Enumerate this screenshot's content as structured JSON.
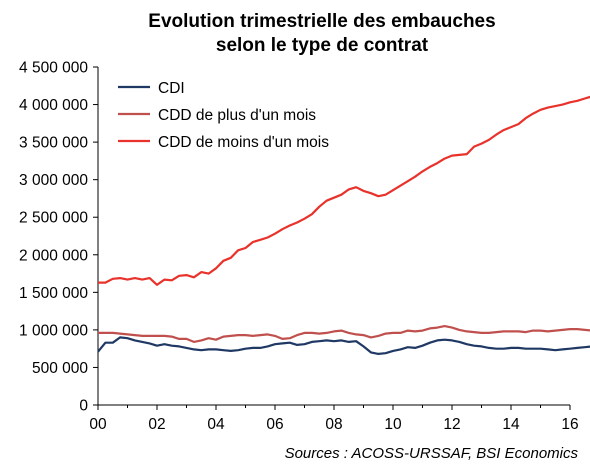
{
  "chart_data": {
    "type": "line",
    "title": [
      "Evolution trimestrielle des embauches",
      "selon le type de contrat"
    ],
    "source": "Sources : ACOSS-URSSAF, BSI Economics",
    "xlabel": "",
    "ylabel": "",
    "xlim": [
      2000,
      2016
    ],
    "ylim": [
      0,
      4500000
    ],
    "x_tick_values": [
      2000,
      2002,
      2004,
      2006,
      2008,
      2010,
      2012,
      2014,
      2016
    ],
    "x_tick_labels": [
      "00",
      "02",
      "04",
      "06",
      "08",
      "10",
      "12",
      "14",
      "16"
    ],
    "y_tick_values": [
      0,
      500000,
      1000000,
      1500000,
      2000000,
      2500000,
      3000000,
      3500000,
      4000000,
      4500000
    ],
    "y_tick_labels": [
      "0",
      "500 000",
      "1 000 000",
      "1 500 000",
      "2 000 000",
      "2 500 000",
      "3 000 000",
      "3 500 000",
      "4 000 000",
      "4 500 000"
    ],
    "grid": false,
    "legend_position": "top-left",
    "x_start": 2000,
    "x_step": 0.25,
    "series": [
      {
        "name": "CDI",
        "color": "#1f3864",
        "values": [
          710000,
          830000,
          830000,
          900000,
          890000,
          860000,
          840000,
          820000,
          790000,
          810000,
          790000,
          780000,
          760000,
          740000,
          730000,
          740000,
          740000,
          730000,
          720000,
          730000,
          750000,
          760000,
          760000,
          780000,
          810000,
          820000,
          830000,
          800000,
          810000,
          840000,
          850000,
          860000,
          850000,
          860000,
          840000,
          850000,
          780000,
          700000,
          680000,
          690000,
          720000,
          740000,
          770000,
          760000,
          790000,
          830000,
          860000,
          870000,
          860000,
          840000,
          810000,
          790000,
          780000,
          760000,
          750000,
          750000,
          760000,
          760000,
          750000,
          750000,
          750000,
          740000,
          730000,
          740000,
          750000,
          760000,
          770000,
          780000
        ]
      },
      {
        "name": "CDD de plus d'un mois",
        "color": "#c0504d",
        "values": [
          960000,
          960000,
          960000,
          950000,
          940000,
          930000,
          920000,
          920000,
          920000,
          920000,
          910000,
          880000,
          880000,
          840000,
          860000,
          890000,
          870000,
          910000,
          920000,
          930000,
          930000,
          920000,
          930000,
          940000,
          920000,
          880000,
          890000,
          930000,
          960000,
          960000,
          950000,
          960000,
          980000,
          990000,
          960000,
          940000,
          930000,
          900000,
          920000,
          950000,
          960000,
          960000,
          990000,
          980000,
          990000,
          1020000,
          1030000,
          1050000,
          1030000,
          1000000,
          980000,
          970000,
          960000,
          960000,
          970000,
          980000,
          980000,
          980000,
          970000,
          990000,
          990000,
          980000,
          990000,
          1000000,
          1010000,
          1010000,
          1000000,
          990000
        ]
      },
      {
        "name": "CDD de moins d'un mois",
        "color": "#e8322b",
        "values": [
          1630000,
          1630000,
          1680000,
          1690000,
          1670000,
          1690000,
          1670000,
          1690000,
          1600000,
          1670000,
          1660000,
          1720000,
          1730000,
          1700000,
          1770000,
          1750000,
          1820000,
          1920000,
          1960000,
          2060000,
          2090000,
          2170000,
          2200000,
          2230000,
          2280000,
          2340000,
          2390000,
          2430000,
          2480000,
          2540000,
          2640000,
          2720000,
          2760000,
          2800000,
          2870000,
          2900000,
          2850000,
          2820000,
          2780000,
          2800000,
          2860000,
          2920000,
          2980000,
          3040000,
          3110000,
          3170000,
          3220000,
          3280000,
          3320000,
          3330000,
          3340000,
          3440000,
          3480000,
          3530000,
          3600000,
          3660000,
          3700000,
          3740000,
          3820000,
          3880000,
          3930000,
          3960000,
          3980000,
          4000000,
          4030000,
          4050000,
          4080000,
          4110000
        ]
      }
    ]
  }
}
